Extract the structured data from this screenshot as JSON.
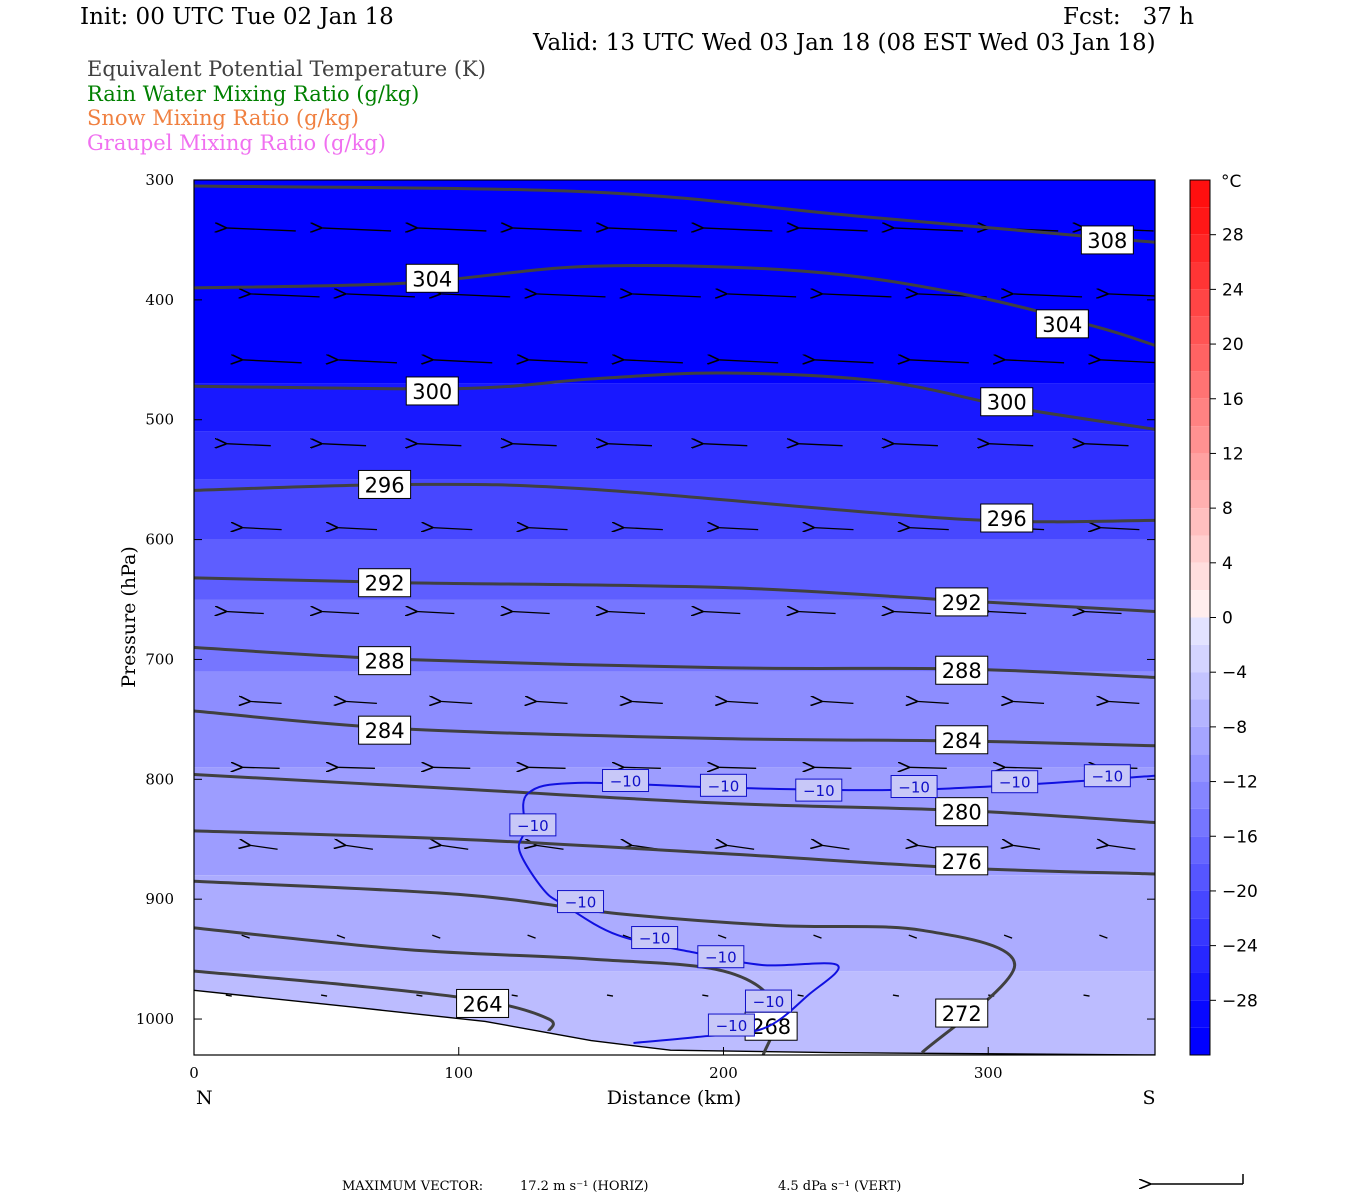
{
  "header": {
    "init": "Init: 00 UTC Tue 02 Jan 18",
    "fcst": "Fcst:   37 h",
    "valid": "Valid: 13 UTC Wed 03 Jan 18 (08 EST Wed 03 Jan 18)"
  },
  "legend": [
    {
      "label": "Equivalent Potential Temperature (K)",
      "color": "#404040"
    },
    {
      "label": "Rain Water Mixing Ratio (g/kg)",
      "color": "#008000"
    },
    {
      "label": "Snow Mixing Ratio (g/kg)",
      "color": "#f08040"
    },
    {
      "label": "Graupel Mixing Ratio (g/kg)",
      "color": "#f070f0"
    }
  ],
  "chart_data": {
    "type": "cross-section",
    "xlabel": "Distance (km)",
    "ylabel": "Pressure (hPa)",
    "xlim": [
      0,
      363
    ],
    "ylim": [
      1030,
      300
    ],
    "xticks": [
      0,
      100,
      200,
      300
    ],
    "yticks": [
      300,
      400,
      500,
      600,
      700,
      800,
      900,
      1000
    ],
    "x_end_labels": {
      "left": "N",
      "right": "S"
    },
    "colorbar": {
      "unit": "°C",
      "tick_values": [
        28,
        24,
        20,
        16,
        12,
        8,
        4,
        0,
        -4,
        -8,
        -12,
        -16,
        -20,
        -24,
        -28
      ],
      "tick_labels": [
        "28",
        "24",
        "20",
        "16",
        "12",
        "8",
        "4",
        "0",
        "−4",
        "−8",
        "−12",
        "−16",
        "−20",
        "−24",
        "−28"
      ]
    },
    "temperature_fill_bands": [
      {
        "p": [
          300,
          470
        ],
        "tc": -30
      },
      {
        "p": [
          470,
          510
        ],
        "tc": -27
      },
      {
        "p": [
          510,
          550
        ],
        "tc": -24
      },
      {
        "p": [
          550,
          600
        ],
        "tc": -21
      },
      {
        "p": [
          600,
          650
        ],
        "tc": -18
      },
      {
        "p": [
          650,
          710
        ],
        "tc": -15
      },
      {
        "p": [
          710,
          790
        ],
        "tc": -12
      },
      {
        "p": [
          790,
          880
        ],
        "tc": -10
      },
      {
        "p": [
          880,
          960
        ],
        "tc": -8
      },
      {
        "p": [
          960,
          1030
        ],
        "tc": -6
      }
    ],
    "theta_e_contours": [
      {
        "value": 264,
        "points": [
          [
            0,
            960
          ],
          [
            60,
            972
          ],
          [
            110,
            985
          ],
          [
            134,
            1000
          ],
          [
            134,
            1010
          ]
        ],
        "labels": [
          [
            109,
            987
          ]
        ]
      },
      {
        "value": 268,
        "points": [
          [
            0,
            924
          ],
          [
            80,
            942
          ],
          [
            150,
            950
          ],
          [
            200,
            960
          ],
          [
            220,
            990
          ],
          [
            215,
            1030
          ]
        ],
        "labels": [
          [
            218,
            1006
          ]
        ]
      },
      {
        "value": 272,
        "points": [
          [
            0,
            885
          ],
          [
            100,
            896
          ],
          [
            160,
            912
          ],
          [
            220,
            922
          ],
          [
            275,
            926
          ],
          [
            310,
            955
          ],
          [
            275,
            1028
          ]
        ],
        "labels": [
          [
            290,
            995
          ]
        ]
      },
      {
        "value": 276,
        "points": [
          [
            0,
            843
          ],
          [
            100,
            850
          ],
          [
            200,
            862
          ],
          [
            290,
            874
          ],
          [
            363,
            879
          ]
        ],
        "labels": [
          [
            290,
            868
          ]
        ]
      },
      {
        "value": 280,
        "points": [
          [
            0,
            796
          ],
          [
            100,
            808
          ],
          [
            200,
            820
          ],
          [
            290,
            826
          ],
          [
            363,
            836
          ]
        ],
        "labels": [
          [
            290,
            827
          ]
        ]
      },
      {
        "value": 284,
        "points": [
          [
            0,
            743
          ],
          [
            80,
            758
          ],
          [
            200,
            766
          ],
          [
            290,
            768
          ],
          [
            363,
            772
          ]
        ],
        "labels": [
          [
            72,
            759
          ],
          [
            290,
            767
          ]
        ]
      },
      {
        "value": 288,
        "points": [
          [
            0,
            690
          ],
          [
            80,
            700
          ],
          [
            200,
            707
          ],
          [
            290,
            708
          ],
          [
            363,
            715
          ]
        ],
        "labels": [
          [
            72,
            701
          ],
          [
            290,
            709
          ]
        ]
      },
      {
        "value": 292,
        "points": [
          [
            0,
            632
          ],
          [
            80,
            636
          ],
          [
            200,
            640
          ],
          [
            290,
            651
          ],
          [
            363,
            660
          ]
        ],
        "labels": [
          [
            72,
            636
          ],
          [
            290,
            652
          ]
        ]
      },
      {
        "value": 296,
        "points": [
          [
            0,
            559
          ],
          [
            80,
            554
          ],
          [
            150,
            558
          ],
          [
            290,
            583
          ],
          [
            363,
            584
          ]
        ],
        "labels": [
          [
            72,
            554
          ],
          [
            307,
            582
          ]
        ]
      },
      {
        "value": 300,
        "points": [
          [
            0,
            472
          ],
          [
            100,
            474
          ],
          [
            150,
            466
          ],
          [
            200,
            461
          ],
          [
            260,
            468
          ],
          [
            310,
            490
          ],
          [
            363,
            508
          ]
        ],
        "labels": [
          [
            90,
            476
          ],
          [
            307,
            485
          ]
        ]
      },
      {
        "value": 304,
        "points": [
          [
            0,
            390
          ],
          [
            80,
            386
          ],
          [
            150,
            372
          ],
          [
            230,
            376
          ],
          [
            290,
            395
          ],
          [
            340,
            422
          ],
          [
            363,
            438
          ]
        ],
        "labels": [
          [
            90,
            382
          ],
          [
            328,
            420
          ]
        ]
      },
      {
        "value": 308,
        "points": [
          [
            0,
            305
          ],
          [
            150,
            310
          ],
          [
            250,
            330
          ],
          [
            363,
            352
          ]
        ],
        "labels": [
          [
            345,
            350
          ]
        ]
      }
    ],
    "temperature_contour_minus10": {
      "value": -10,
      "points": [
        [
          166,
          1020
        ],
        [
          190,
          1015
        ],
        [
          215,
          1008
        ],
        [
          232,
          980
        ],
        [
          243,
          955
        ],
        [
          215,
          955
        ],
        [
          190,
          945
        ],
        [
          160,
          930
        ],
        [
          140,
          905
        ],
        [
          132,
          892
        ],
        [
          123,
          860
        ],
        [
          125,
          842
        ],
        [
          126,
          812
        ],
        [
          145,
          803
        ],
        [
          200,
          807
        ],
        [
          260,
          809
        ],
        [
          310,
          805
        ],
        [
          363,
          797
        ]
      ],
      "labels": [
        [
          203,
          1005
        ],
        [
          217,
          985
        ],
        [
          199,
          948
        ],
        [
          174,
          932
        ],
        [
          146,
          902
        ],
        [
          128,
          838
        ],
        [
          163,
          801
        ],
        [
          200,
          805
        ],
        [
          236,
          809
        ],
        [
          272,
          806
        ],
        [
          310,
          802
        ],
        [
          345,
          797
        ]
      ]
    },
    "wind_vectors": {
      "max_vector_label": "MAXIMUM VECTOR:",
      "horiz": "17.2 m s⁻¹ (HORIZ)",
      "vert": "4.5 dPa s⁻¹ (VERT)"
    }
  }
}
